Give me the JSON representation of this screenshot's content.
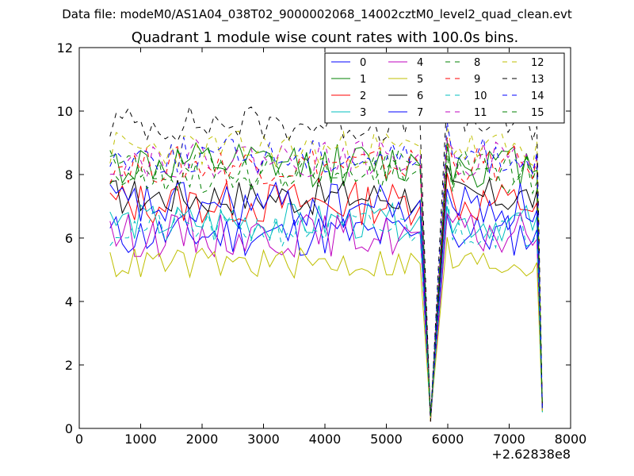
{
  "chart_data": {
    "type": "line",
    "suptitle": "Data file: modeM0/AS1A04_038T02_9000002068_14002cztM0_level2_quad_clean.evt",
    "title": "Quadrant 1 module wise count rates with 100.0s bins.",
    "xlabel": "",
    "ylabel": "",
    "xlim": [
      0,
      8000
    ],
    "ylim": [
      0,
      12
    ],
    "x_offset_label": "+2.62838e8",
    "x_ticks": [
      0,
      1000,
      2000,
      3000,
      4000,
      5000,
      6000,
      7000,
      8000
    ],
    "x_tick_labels": [
      "0",
      "1000",
      "2000",
      "3000",
      "4000",
      "5000",
      "6000",
      "7000",
      "8000"
    ],
    "y_ticks": [
      0,
      2,
      4,
      6,
      8,
      10,
      12
    ],
    "y_tick_labels": [
      "0",
      "2",
      "4",
      "6",
      "8",
      "10",
      "12"
    ],
    "grid": false,
    "legend_position": "top-right",
    "legend_columns": 4,
    "time_range": [
      500,
      7540
    ],
    "bin_step": 100,
    "drop_points": [
      [
        5550,
        8.3
      ],
      [
        5720,
        0.2
      ],
      [
        5990,
        10
      ]
    ],
    "drop_points_2": [
      [
        7450,
        8.2
      ],
      [
        7540,
        0.5
      ]
    ],
    "series": [
      {
        "name": "0",
        "color": "#0000ff",
        "dash": "solid",
        "level": 6.1,
        "spread": 0.35,
        "seed": 11
      },
      {
        "name": "1",
        "color": "#008000",
        "dash": "solid",
        "level": 8.3,
        "spread": 0.35,
        "seed": 12
      },
      {
        "name": "2",
        "color": "#ff0000",
        "dash": "solid",
        "level": 7.1,
        "spread": 0.35,
        "seed": 13
      },
      {
        "name": "3",
        "color": "#00bfbf",
        "dash": "solid",
        "level": 6.5,
        "spread": 0.3,
        "seed": 14
      },
      {
        "name": "4",
        "color": "#bf00bf",
        "dash": "solid",
        "level": 6.1,
        "spread": 0.35,
        "seed": 15
      },
      {
        "name": "5",
        "color": "#bfbf00",
        "dash": "solid",
        "level": 5.2,
        "spread": 0.25,
        "seed": 16
      },
      {
        "name": "6",
        "color": "#000000",
        "dash": "solid",
        "level": 7.3,
        "spread": 0.3,
        "seed": 17
      },
      {
        "name": "7",
        "color": "#0000ff",
        "dash": "solid",
        "level": 7.0,
        "spread": 0.4,
        "seed": 18
      },
      {
        "name": "8",
        "color": "#008000",
        "dash": "dashed",
        "level": 8.2,
        "spread": 0.3,
        "seed": 19
      },
      {
        "name": "9",
        "color": "#ff0000",
        "dash": "dashed",
        "level": 8.3,
        "spread": 0.3,
        "seed": 20
      },
      {
        "name": "10",
        "color": "#00bfbf",
        "dash": "dashed",
        "level": 6.3,
        "spread": 0.3,
        "seed": 21
      },
      {
        "name": "11",
        "color": "#bf00bf",
        "dash": "dashed",
        "level": 8.5,
        "spread": 0.3,
        "seed": 22
      },
      {
        "name": "12",
        "color": "#bfbf00",
        "dash": "dashed",
        "level": 8.8,
        "spread": 0.3,
        "seed": 23
      },
      {
        "name": "13",
        "color": "#000000",
        "dash": "dashed",
        "level": 9.6,
        "spread": 0.3,
        "seed": 24
      },
      {
        "name": "14",
        "color": "#0000ff",
        "dash": "dashed",
        "level": 8.6,
        "spread": 0.3,
        "seed": 25
      },
      {
        "name": "15",
        "color": "#008000",
        "dash": "dashed",
        "level": 8.0,
        "spread": 0.3,
        "seed": 26
      }
    ]
  }
}
